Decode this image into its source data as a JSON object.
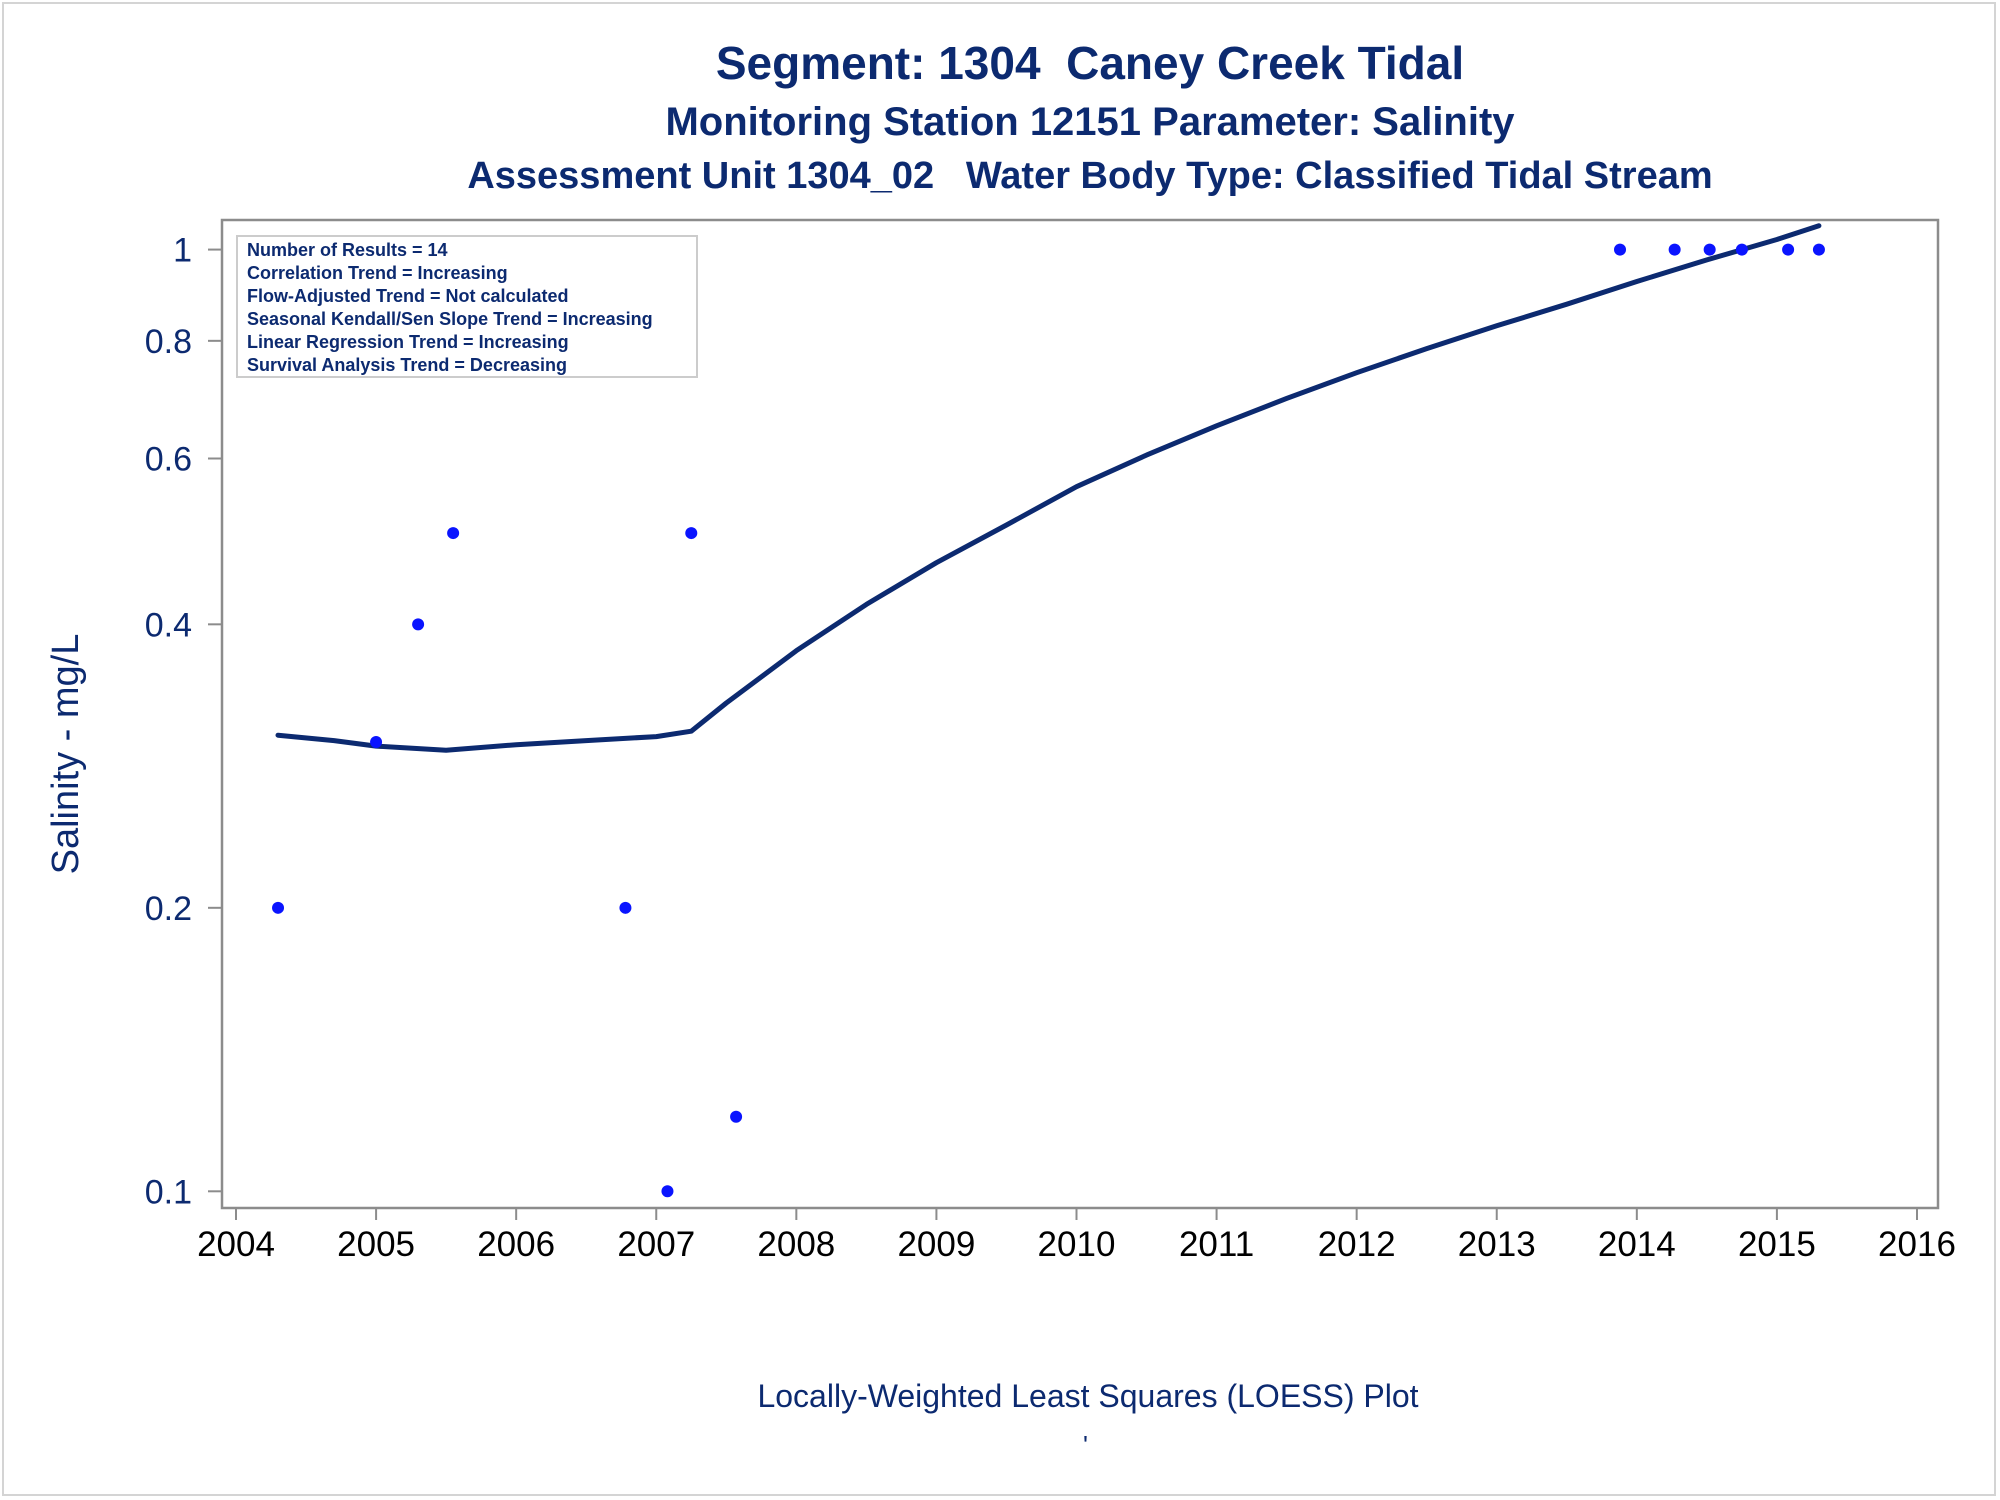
{
  "titles": {
    "line1": "Segment: 1304  Caney Creek Tidal",
    "line2": "Monitoring Station 12151 Parameter: Salinity",
    "line3": "Assessment Unit 1304_02   Water Body Type: Classified Tidal Stream"
  },
  "footer": "Locally-Weighted Least Squares (LOESS) Plot",
  "footer_mark": "'",
  "stats_box": [
    "Number of Results = 14",
    "Correlation Trend = Increasing",
    "Flow-Adjusted Trend = Not calculated",
    "Seasonal Kendall/Sen Slope Trend = Increasing",
    "Linear Regression Trend = Increasing",
    "Survival Analysis Trend = Decreasing"
  ],
  "colors": {
    "text": "#0c2a70",
    "points": "#0a14ff",
    "line": "#0c2a70",
    "axis": "#8c8c8c"
  },
  "chart_data": {
    "type": "scatter",
    "ylabel": "Salinity - mg/L",
    "xlabel": "",
    "x_ticks": [
      2004,
      2005,
      2006,
      2007,
      2008,
      2009,
      2010,
      2011,
      2012,
      2013,
      2014,
      2015,
      2016
    ],
    "y_ticks": [
      {
        "value": 0.1,
        "label": "0.1"
      },
      {
        "value": 0.2,
        "label": "0.2"
      },
      {
        "value": 0.4,
        "label": "0.4"
      },
      {
        "value": 0.6,
        "label": "0.6"
      },
      {
        "value": 0.8,
        "label": "0.8"
      },
      {
        "value": 1.0,
        "label": "1"
      }
    ],
    "xlim": [
      2003.9,
      2016.15
    ],
    "ylim": [
      0.096,
      1.075
    ],
    "y_scale": "log",
    "grid": false,
    "points": [
      {
        "x": 2004.3,
        "y": 0.2
      },
      {
        "x": 2005.0,
        "y": 0.3
      },
      {
        "x": 2005.3,
        "y": 0.4
      },
      {
        "x": 2005.55,
        "y": 0.5
      },
      {
        "x": 2006.78,
        "y": 0.2
      },
      {
        "x": 2007.08,
        "y": 0.1
      },
      {
        "x": 2007.25,
        "y": 0.5
      },
      {
        "x": 2007.57,
        "y": 0.12
      },
      {
        "x": 2013.88,
        "y": 1.0
      },
      {
        "x": 2014.27,
        "y": 1.0
      },
      {
        "x": 2014.52,
        "y": 1.0
      },
      {
        "x": 2014.75,
        "y": 1.0
      },
      {
        "x": 2015.08,
        "y": 1.0
      },
      {
        "x": 2015.3,
        "y": 1.0
      }
    ],
    "loess": [
      {
        "x": 2004.3,
        "y": 0.305
      },
      {
        "x": 2004.7,
        "y": 0.301
      },
      {
        "x": 2005.0,
        "y": 0.297
      },
      {
        "x": 2005.5,
        "y": 0.294
      },
      {
        "x": 2006.0,
        "y": 0.298
      },
      {
        "x": 2006.5,
        "y": 0.301
      },
      {
        "x": 2007.0,
        "y": 0.304
      },
      {
        "x": 2007.25,
        "y": 0.308
      },
      {
        "x": 2007.5,
        "y": 0.33
      },
      {
        "x": 2008.0,
        "y": 0.375
      },
      {
        "x": 2008.5,
        "y": 0.42
      },
      {
        "x": 2009.0,
        "y": 0.465
      },
      {
        "x": 2009.5,
        "y": 0.51
      },
      {
        "x": 2010.0,
        "y": 0.56
      },
      {
        "x": 2010.5,
        "y": 0.605
      },
      {
        "x": 2011.0,
        "y": 0.65
      },
      {
        "x": 2011.5,
        "y": 0.695
      },
      {
        "x": 2012.0,
        "y": 0.74
      },
      {
        "x": 2012.5,
        "y": 0.785
      },
      {
        "x": 2013.0,
        "y": 0.83
      },
      {
        "x": 2013.5,
        "y": 0.875
      },
      {
        "x": 2014.0,
        "y": 0.925
      },
      {
        "x": 2014.5,
        "y": 0.975
      },
      {
        "x": 2015.0,
        "y": 1.025
      },
      {
        "x": 2015.3,
        "y": 1.06
      }
    ]
  }
}
